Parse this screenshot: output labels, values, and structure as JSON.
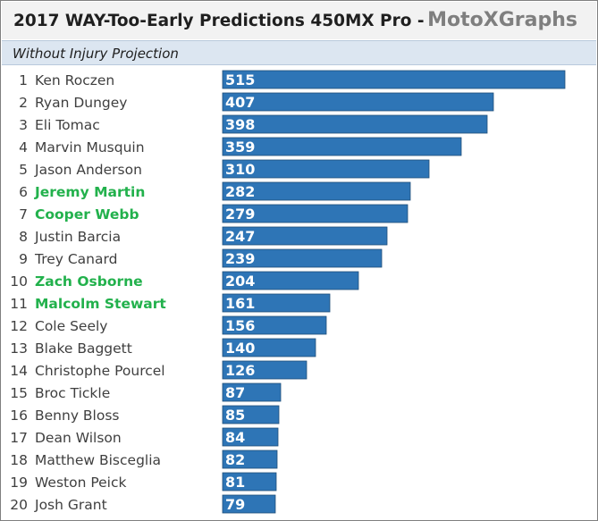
{
  "header": {
    "title": "2017 WAY-Too-Early Predictions 450MX Pro  -",
    "brand": "MotoXGraphs"
  },
  "subheader": {
    "subtitle": "Without Injury Projection"
  },
  "colors": {
    "bar": "#2e75b6",
    "highlight_text": "#22b14c",
    "default_text": "#3f3f3f"
  },
  "chart_data": {
    "type": "bar",
    "orientation": "horizontal",
    "ranks": [
      1,
      2,
      3,
      4,
      5,
      6,
      7,
      8,
      9,
      10,
      11,
      12,
      13,
      14,
      15,
      16,
      17,
      18,
      19,
      20
    ],
    "categories": [
      "Ken Roczen",
      "Ryan Dungey",
      "Eli Tomac",
      "Marvin Musquin",
      "Jason Anderson",
      "Jeremy Martin",
      "Cooper Webb",
      "Justin Barcia",
      "Trey Canard",
      "Zach Osborne",
      "Malcolm Stewart",
      "Cole Seely",
      "Blake Baggett",
      "Christophe Pourcel",
      "Broc Tickle",
      "Benny Bloss",
      "Dean Wilson",
      "Matthew Bisceglia",
      "Weston Peick",
      "Josh Grant"
    ],
    "values": [
      515,
      407,
      398,
      359,
      310,
      282,
      279,
      247,
      239,
      204,
      161,
      156,
      140,
      126,
      87,
      85,
      84,
      82,
      81,
      79
    ],
    "highlighted": [
      false,
      false,
      false,
      false,
      false,
      true,
      true,
      false,
      false,
      true,
      true,
      false,
      false,
      false,
      false,
      false,
      false,
      false,
      false,
      false
    ],
    "xlim": [
      0,
      515
    ],
    "grid": false,
    "data_labels": true
  }
}
